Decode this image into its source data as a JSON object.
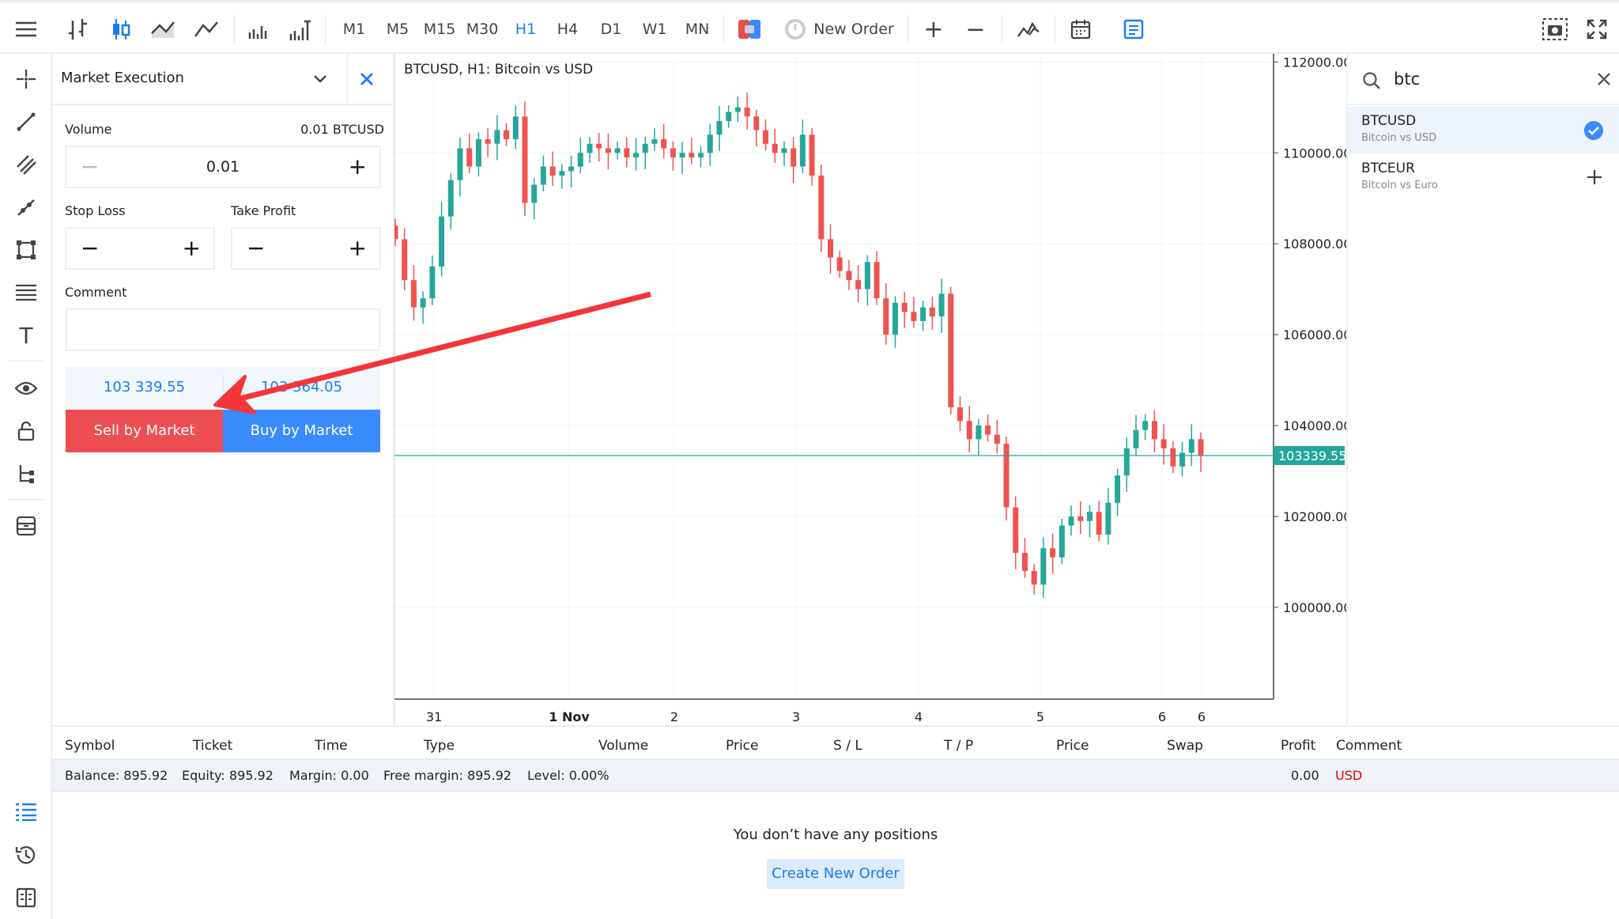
{
  "toolbar": {
    "chart_types": [
      "bar-chart-icon",
      "candlestick-icon",
      "area-chart-icon",
      "line-chart-icon"
    ],
    "timeframes": [
      "M1",
      "M5",
      "M15",
      "M30",
      "H1",
      "H4",
      "D1",
      "W1",
      "MN"
    ],
    "active_timeframe": "H1",
    "new_order_label": "New Order"
  },
  "order_panel": {
    "execution_type": "Market Execution",
    "volume_label": "Volume",
    "volume_unit": "0.01 BTCUSD",
    "volume_value": "0.01",
    "stop_loss_label": "Stop Loss",
    "take_profit_label": "Take Profit",
    "comment_label": "Comment",
    "comment_value": "",
    "bid": "103 339.55",
    "ask": "103 364.05",
    "sell_label": "Sell by Market",
    "buy_label": "Buy by Market"
  },
  "symbols": {
    "search_value": "btc",
    "items": [
      {
        "symbol": "BTCUSD",
        "description": "Bitcoin vs USD",
        "state": "selected"
      },
      {
        "symbol": "BTCEUR",
        "description": "Bitcoin vs Euro",
        "state": "add"
      }
    ]
  },
  "bottom": {
    "columns": [
      "Symbol",
      "Ticket",
      "Time",
      "Type",
      "Volume",
      "Price",
      "S / L",
      "T / P",
      "Price",
      "Swap",
      "Profit",
      "Comment"
    ],
    "balance": "Balance: 895.92",
    "equity": "Equity: 895.92",
    "margin": "Margin: 0.00",
    "free_margin": "Free margin: 895.92",
    "level": "Level: 0.00%",
    "profit": "0.00",
    "currency": "USD",
    "empty_message": "You don’t have any positions",
    "create_order_label": "Create New Order"
  },
  "colors": {
    "bull": "#26a69a",
    "bear": "#ef5350",
    "accent": "#1a7cf5",
    "sell": "#ee4e52",
    "buy": "#3a8bfd",
    "annotation_arrow": "#f4353a"
  },
  "chart_data": {
    "type": "candlestick",
    "title": "BTCUSD, H1: Bitcoin vs USD",
    "ylim": [
      97980,
      112180
    ],
    "y_ticks": [
      "112000.00",
      "110000.00",
      "108000.00",
      "106000.00",
      "104000.00",
      "102000.00",
      "100000.00"
    ],
    "x_ticks": [
      "31",
      "1 Nov",
      "2",
      "3",
      "4",
      "5",
      "6",
      "6"
    ],
    "current_price": "103339.55",
    "closes": [
      108100,
      107200,
      106600,
      106800,
      107500,
      108600,
      109400,
      110100,
      109700,
      110300,
      110200,
      110500,
      110300,
      110800,
      108900,
      109300,
      109700,
      109500,
      109600,
      109700,
      110000,
      110200,
      110100,
      110000,
      110100,
      109900,
      110000,
      110200,
      110300,
      110100,
      109900,
      110000,
      109900,
      110000,
      110400,
      110700,
      110900,
      111000,
      110800,
      110500,
      110200,
      110000,
      110100,
      109700,
      110400,
      109500,
      108100,
      107700,
      107400,
      107200,
      107000,
      107600,
      106800,
      106000,
      106700,
      106500,
      106300,
      106600,
      106400,
      106900,
      104400,
      104100,
      103700,
      104000,
      103800,
      103600,
      102200,
      101200,
      100800,
      100500,
      101300,
      101100,
      101800,
      102000,
      101900,
      102100,
      101600,
      102300,
      102900,
      103500,
      103900,
      104100,
      103700,
      103500,
      103100,
      103400,
      103700,
      103340
    ],
    "grid": true
  }
}
